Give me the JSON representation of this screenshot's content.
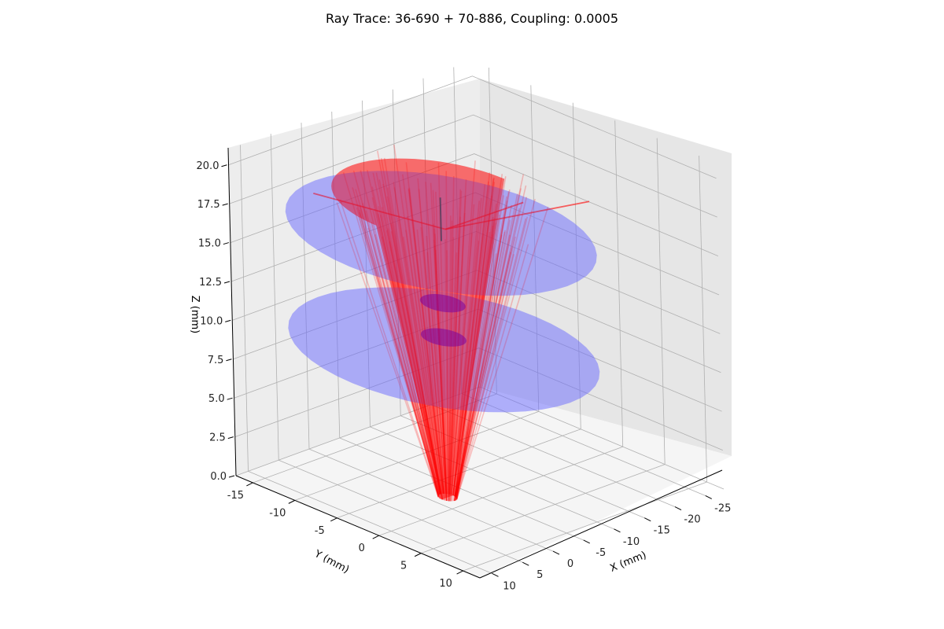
{
  "chart_data": {
    "type": "3d-ray-trace",
    "title": "Ray Trace: 36-690 + 70-886, Coupling: 0.0005",
    "xlabel": "X (mm)",
    "ylabel": "Y (mm)",
    "zlabel": "Z (mm)",
    "xlim": [
      -28,
      12
    ],
    "ylim": [
      -17,
      12
    ],
    "zlim": [
      0,
      21
    ],
    "xticks": [
      "-25",
      "-20",
      "-15",
      "-10",
      "-5",
      "0",
      "5",
      "10"
    ],
    "yticks": [
      "-15",
      "-10",
      "-5",
      "0",
      "5",
      "10"
    ],
    "zticks": [
      "0.0",
      "2.5",
      "5.0",
      "7.5",
      "10.0",
      "12.5",
      "15.0",
      "17.5",
      "20.0"
    ],
    "grid": true,
    "colors": {
      "rays": "#ff0000",
      "lenses": "#6b6bff",
      "focal": "#7a00a0",
      "pane": "#f2f2f2"
    },
    "lenses": [
      {
        "z": 17.0,
        "radius": 15.0,
        "name": ""
      },
      {
        "z": 9.5,
        "radius": 15.0,
        "name": ""
      },
      {
        "z": 12.5,
        "radius": 2.2,
        "name": ""
      },
      {
        "z": 10.3,
        "radius": 2.2,
        "name": ""
      }
    ],
    "source": {
      "z_bottom": 0.0,
      "radius_bottom": 0.9,
      "z_top": 19.0,
      "radius_top": 10.5,
      "ray_count": 140
    },
    "escaped_rays": [
      {
        "from": [
          0,
          0,
          18.0
        ],
        "to": [
          10.5,
          -8.0,
          20.0
        ]
      },
      {
        "from": [
          0,
          0,
          18.0
        ],
        "to": [
          -12.0,
          8.5,
          20.0
        ]
      },
      {
        "from": [
          0,
          0,
          18.0
        ],
        "to": [
          -6.0,
          5.0,
          20.0
        ]
      }
    ]
  }
}
